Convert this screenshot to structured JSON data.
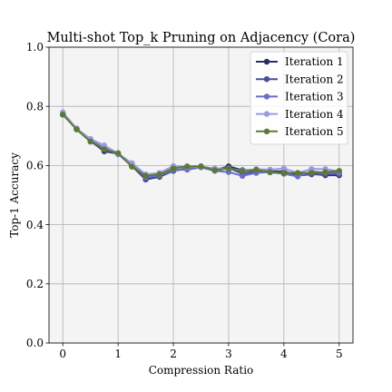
{
  "chart_data": {
    "type": "line",
    "title": "Multi-shot Top_k Pruning on Adjacency (Cora)",
    "xlabel": "Compression Ratio",
    "ylabel": "Top-1 Accuracy",
    "xlim": [
      -0.25,
      5.25
    ],
    "ylim": [
      0.0,
      1.0
    ],
    "xticks": [
      0,
      1,
      2,
      3,
      4,
      5
    ],
    "yticks": [
      0.0,
      0.2,
      0.4,
      0.6,
      0.8,
      1.0
    ],
    "xtick_labels": [
      "0",
      "1",
      "2",
      "3",
      "4",
      "5"
    ],
    "ytick_labels": [
      "0.0",
      "0.2",
      "0.4",
      "0.6",
      "0.8",
      "1.0"
    ],
    "grid": true,
    "legend_position": "top-right",
    "x": [
      0,
      0.25,
      0.5,
      0.75,
      1.0,
      1.25,
      1.5,
      1.75,
      2.0,
      2.25,
      2.5,
      2.75,
      3.0,
      3.25,
      3.5,
      3.75,
      4.0,
      4.25,
      4.5,
      4.75,
      5.0
    ],
    "series": [
      {
        "name": "Iteration 1",
        "color": "#2b2d5e",
        "values": [
          0.772,
          0.725,
          0.683,
          0.648,
          0.64,
          0.598,
          0.553,
          0.562,
          0.582,
          0.59,
          0.597,
          0.585,
          0.597,
          0.584,
          0.586,
          0.58,
          0.58,
          0.568,
          0.572,
          0.567,
          0.567
        ]
      },
      {
        "name": "Iteration 2",
        "color": "#4a4d9a",
        "values": [
          0.773,
          0.724,
          0.681,
          0.652,
          0.64,
          0.598,
          0.555,
          0.565,
          0.583,
          0.588,
          0.595,
          0.583,
          0.592,
          0.572,
          0.58,
          0.577,
          0.573,
          0.566,
          0.57,
          0.57,
          0.57
        ]
      },
      {
        "name": "Iteration 3",
        "color": "#6a6dcc",
        "values": [
          0.775,
          0.724,
          0.685,
          0.659,
          0.638,
          0.605,
          0.56,
          0.566,
          0.585,
          0.586,
          0.594,
          0.582,
          0.578,
          0.565,
          0.575,
          0.578,
          0.572,
          0.563,
          0.58,
          0.576,
          0.575
        ]
      },
      {
        "name": "Iteration 4",
        "color": "#9a9ae0",
        "values": [
          0.78,
          0.725,
          0.69,
          0.668,
          0.64,
          0.608,
          0.57,
          0.575,
          0.598,
          0.595,
          0.596,
          0.59,
          0.59,
          0.582,
          0.588,
          0.586,
          0.59,
          0.575,
          0.588,
          0.588,
          0.58
        ]
      },
      {
        "name": "Iteration 5",
        "color": "#5a7a35",
        "values": [
          0.772,
          0.722,
          0.681,
          0.655,
          0.642,
          0.596,
          0.565,
          0.57,
          0.59,
          0.597,
          0.597,
          0.584,
          0.59,
          0.58,
          0.585,
          0.578,
          0.575,
          0.575,
          0.575,
          0.578,
          0.582
        ]
      }
    ]
  }
}
